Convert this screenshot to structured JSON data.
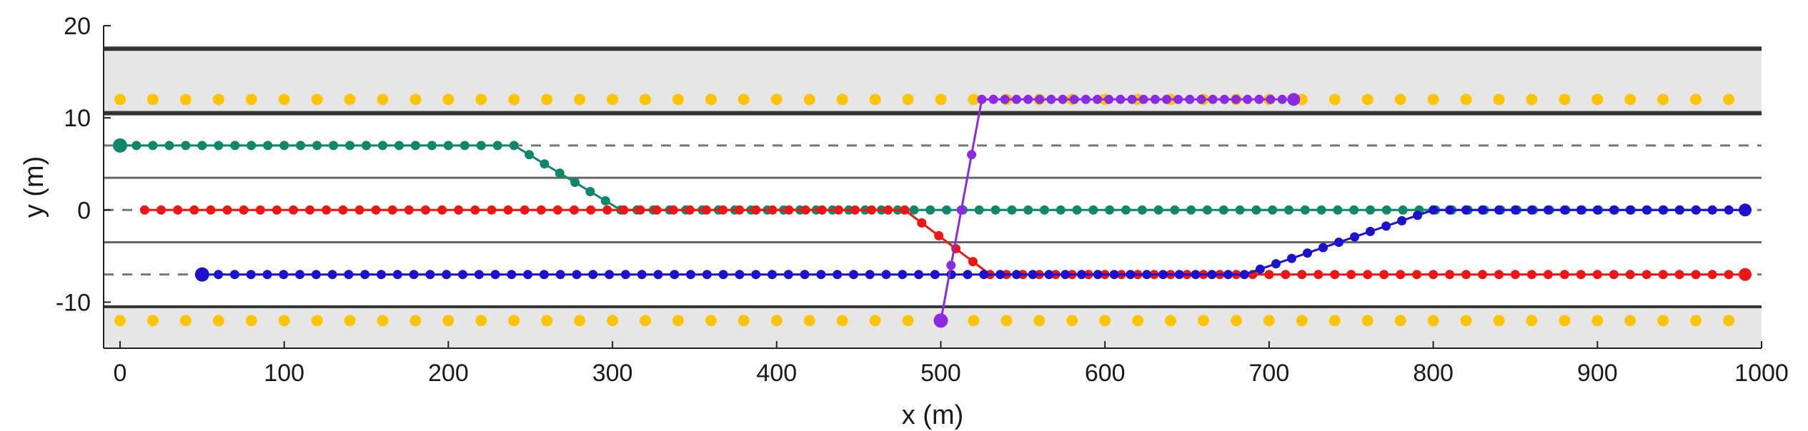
{
  "chart_data": {
    "type": "scatter",
    "title": "",
    "xlabel": "x (m)",
    "ylabel": "y (m)",
    "xlim": [
      -10,
      1000
    ],
    "ylim": [
      -15,
      20
    ],
    "x_ticks": [
      0,
      100,
      200,
      300,
      400,
      500,
      600,
      700,
      800,
      900,
      1000
    ],
    "y_ticks": [
      -10,
      0,
      10,
      20
    ],
    "grid": false,
    "legend": "none",
    "colors": {
      "shoulder_fill": "#e6e6e6",
      "road_edge": "#333333",
      "lane_line": "#666666",
      "dashed_line": "#777777",
      "cones": "#ffc400",
      "green_vehicle": "#10866a",
      "red_vehicle": "#ee1515",
      "blue_vehicle": "#1c12cc",
      "purple_vehicle": "#8a2be2"
    },
    "road": {
      "shoulder_top": [
        10.5,
        17.5
      ],
      "shoulder_bottom": [
        -15,
        -10.5
      ],
      "edge_lines": [
        17.5,
        10.5,
        -10.5
      ],
      "lane_lines": [
        3.5,
        -3.5
      ],
      "dashed_lines": [
        7,
        0,
        -7
      ],
      "cone_rows_y": [
        12,
        -12
      ],
      "cone_spacing": 20
    },
    "series": [
      {
        "color": "#10866a",
        "start_marker": true,
        "waypoints": [
          [
            0,
            7
          ],
          [
            240,
            7
          ],
          [
            305,
            0
          ],
          [
            990,
            0
          ]
        ],
        "step": 10
      },
      {
        "color": "#ee1515",
        "start_marker": false,
        "end_marker": true,
        "waypoints": [
          [
            15,
            0
          ],
          [
            478,
            0
          ],
          [
            530,
            -7
          ],
          [
            990,
            -7
          ]
        ],
        "step": 10
      },
      {
        "color": "#1c12cc",
        "start_marker": true,
        "end_marker": true,
        "waypoints": [
          [
            50,
            -7
          ],
          [
            685,
            -7
          ],
          [
            800,
            0
          ],
          [
            990,
            0
          ]
        ],
        "step": 10
      },
      {
        "color": "#8a2be2",
        "start_marker": true,
        "end_marker": true,
        "waypoints": [
          [
            500,
            -12
          ],
          [
            525,
            12
          ],
          [
            715,
            12
          ]
        ],
        "step": 7
      }
    ]
  }
}
